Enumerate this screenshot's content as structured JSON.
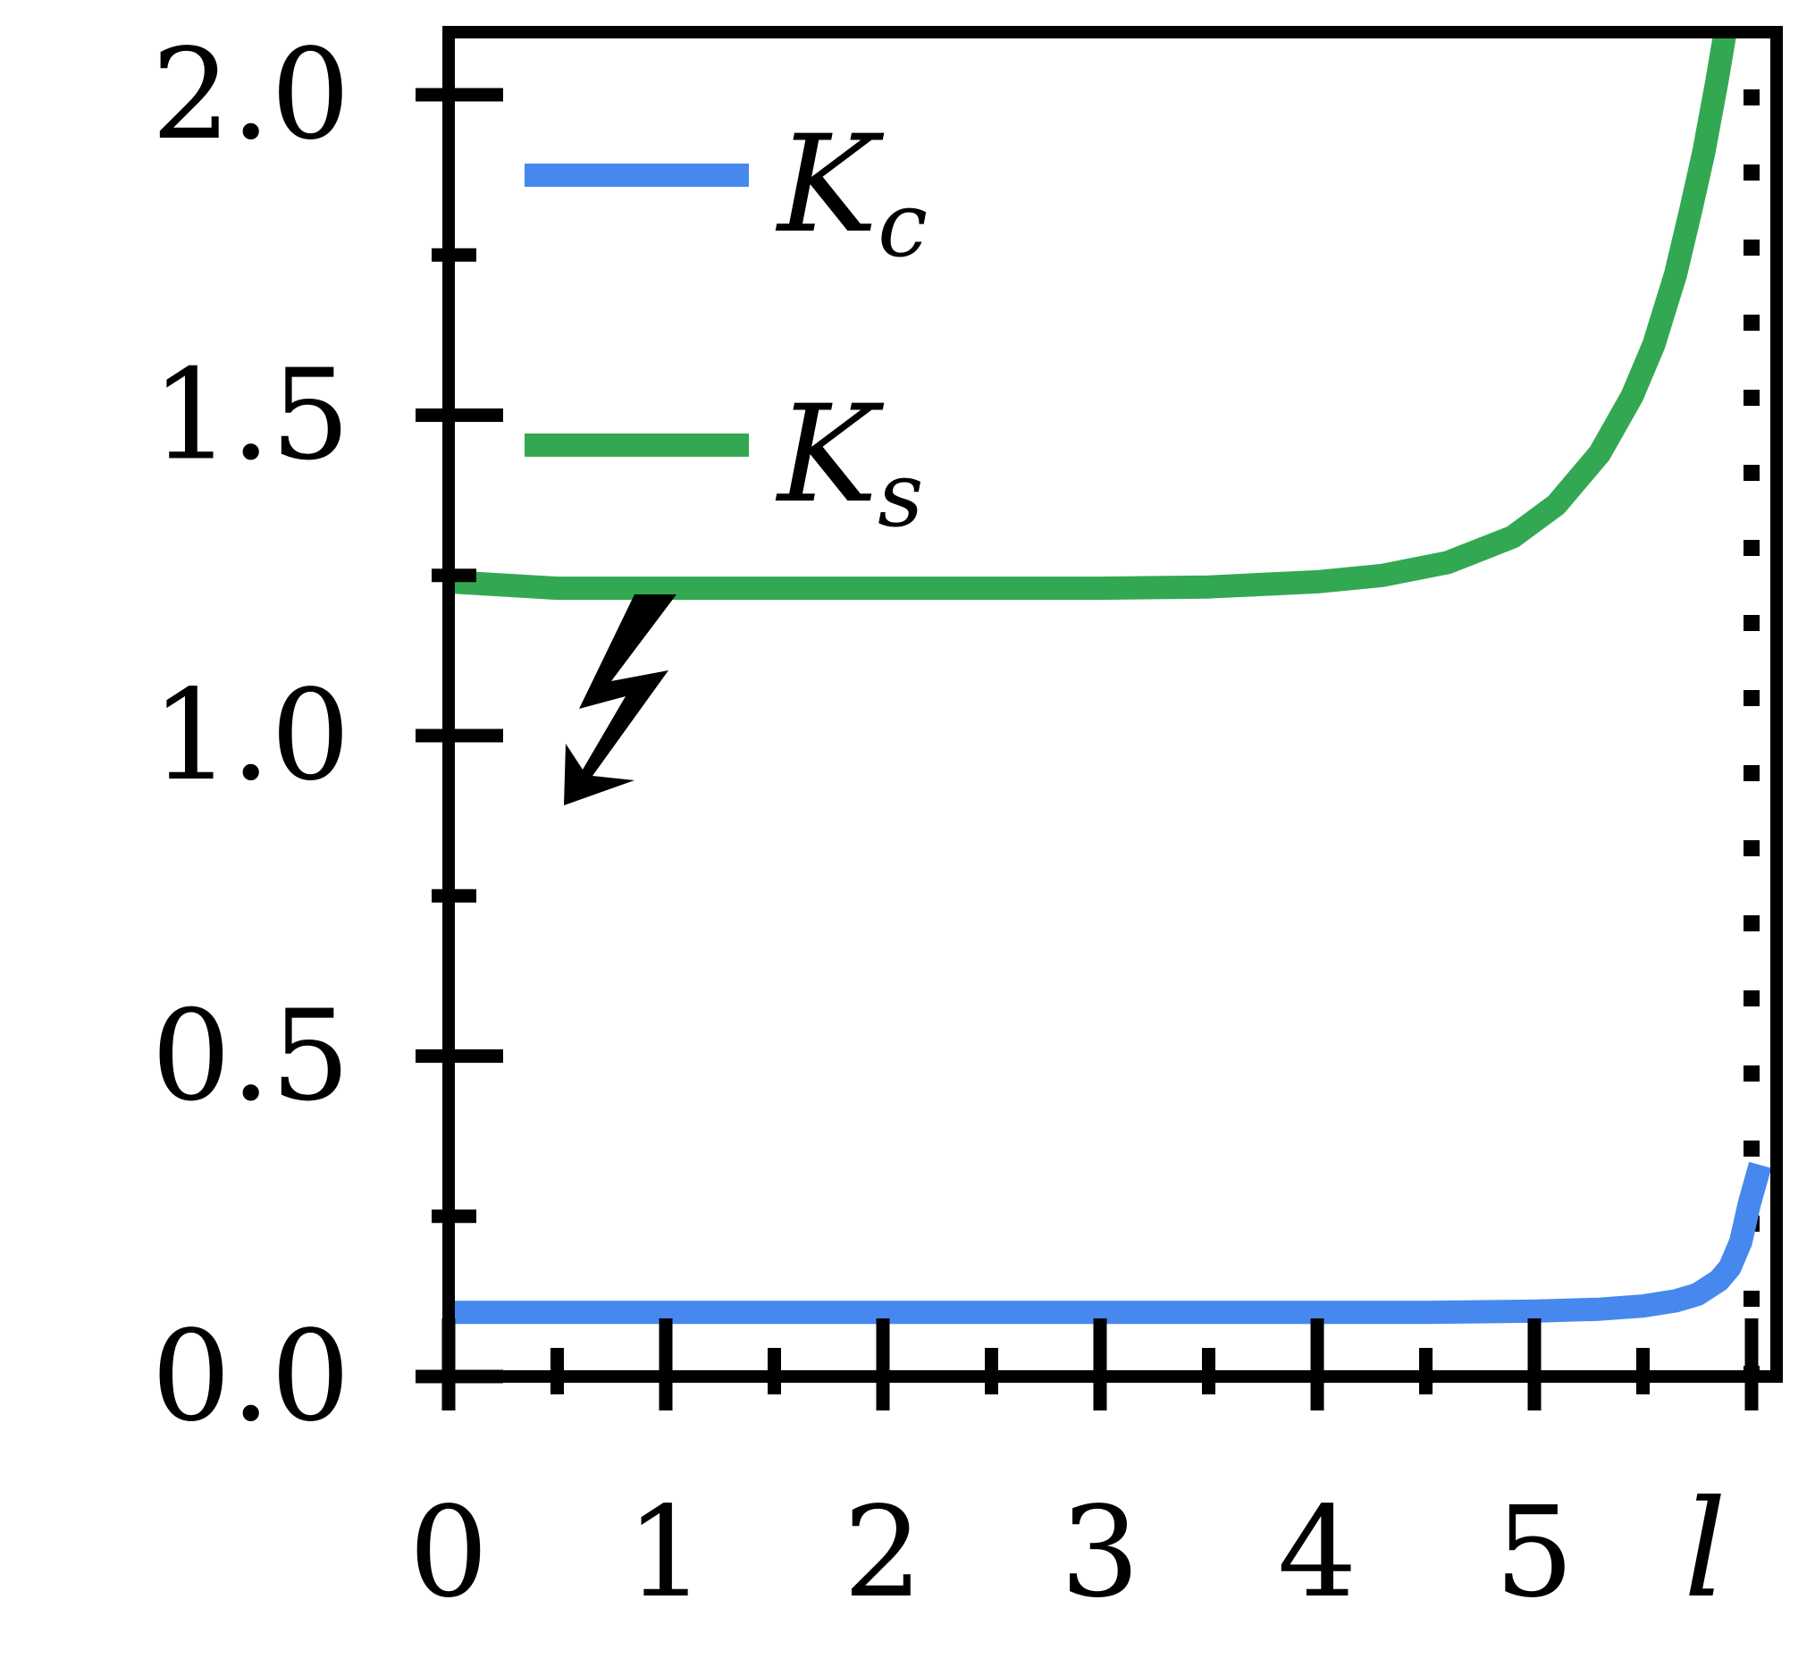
{
  "chart_data": {
    "type": "line",
    "xlabel": "l",
    "ylabel": "",
    "xlim": [
      0,
      6
    ],
    "ylim": [
      0,
      2.1
    ],
    "x_tick_labels": [
      "0",
      "1",
      "2",
      "3",
      "4",
      "5"
    ],
    "y_tick_labels": [
      "0.0",
      "0.5",
      "1.0",
      "1.5",
      "2.0"
    ],
    "critical_x": 6,
    "legend_position": "top-left",
    "series": [
      {
        "name": "K_c",
        "label_main": "K",
        "label_sub": "c",
        "color": "#4688ee",
        "x": [
          0,
          1,
          2,
          3,
          4,
          4.5,
          5,
          5.3,
          5.5,
          5.65,
          5.75,
          5.85,
          5.9,
          5.95,
          5.99,
          6.04
        ],
        "y": [
          0.1,
          0.1,
          0.1,
          0.1,
          0.1,
          0.1,
          0.102,
          0.105,
          0.11,
          0.118,
          0.128,
          0.15,
          0.17,
          0.21,
          0.27,
          0.33
        ]
      },
      {
        "name": "K_s",
        "label_main": "K",
        "label_sub": "s",
        "color": "#33a852",
        "x": [
          0,
          0.5,
          1,
          2,
          3,
          3.5,
          4,
          4.3,
          4.6,
          4.9,
          5.1,
          5.3,
          5.45,
          5.55,
          5.65,
          5.72,
          5.78,
          5.84,
          5.88
        ],
        "y": [
          1.24,
          1.23,
          1.23,
          1.23,
          1.23,
          1.232,
          1.24,
          1.25,
          1.27,
          1.31,
          1.36,
          1.44,
          1.53,
          1.61,
          1.72,
          1.82,
          1.91,
          2.02,
          2.1
        ]
      }
    ],
    "annotations": [
      "lightning-arrow"
    ]
  }
}
